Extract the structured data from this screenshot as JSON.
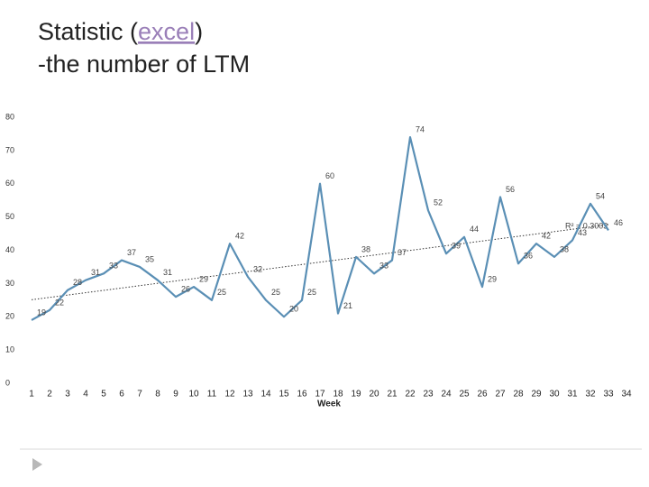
{
  "title_lines": [
    [
      "Statistic (",
      "excel",
      ")"
    ],
    [
      "-the number of LTM"
    ]
  ],
  "chart_data": {
    "type": "line",
    "x": [
      1,
      2,
      3,
      4,
      5,
      6,
      7,
      8,
      9,
      10,
      11,
      12,
      13,
      14,
      15,
      16,
      17,
      18,
      19,
      20,
      21,
      22,
      23,
      24,
      25,
      26,
      27,
      28,
      29,
      30,
      31,
      32,
      33
    ],
    "values": [
      19,
      22,
      28,
      31,
      33,
      37,
      35,
      31,
      26,
      29,
      25,
      42,
      32,
      25,
      20,
      25,
      60,
      21,
      38,
      33,
      37,
      74,
      52,
      39,
      44,
      29,
      56,
      36,
      42,
      38,
      43,
      54,
      46
    ],
    "color": "#5a8fb5",
    "xlabel": "Week",
    "xlim": [
      0.5,
      34.5
    ],
    "xticks": [
      1,
      2,
      3,
      4,
      5,
      6,
      7,
      8,
      9,
      10,
      11,
      12,
      13,
      14,
      15,
      16,
      17,
      18,
      19,
      20,
      21,
      22,
      23,
      24,
      25,
      26,
      27,
      28,
      29,
      30,
      31,
      32,
      33,
      34
    ],
    "ylim": [
      0,
      80
    ],
    "yticks": [
      0,
      10,
      20,
      30,
      40,
      50,
      60,
      70,
      80
    ],
    "trendline": true,
    "r2_label": "R² = 0.3003"
  }
}
